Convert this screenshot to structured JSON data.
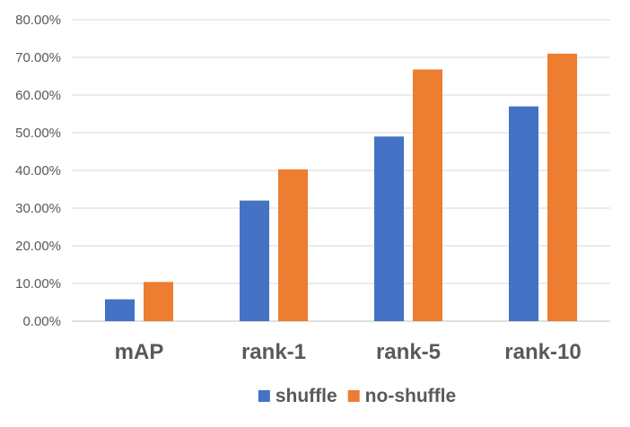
{
  "chart_data": {
    "type": "bar",
    "title": "",
    "xlabel": "",
    "ylabel": "",
    "categories": [
      "mAP",
      "rank-1",
      "rank-5",
      "rank-10"
    ],
    "series": [
      {
        "name": "shuffle",
        "color": "#4472C4",
        "values": [
          5.8,
          32.0,
          49.0,
          57.0
        ]
      },
      {
        "name": "no-shuffle",
        "color": "#ED7D31",
        "values": [
          10.4,
          40.3,
          66.8,
          71.0
        ]
      }
    ],
    "ylim": [
      0,
      80
    ],
    "yticks": [
      0,
      10,
      20,
      30,
      40,
      50,
      60,
      70,
      80
    ],
    "ytick_labels": [
      "0.00%",
      "10.00%",
      "20.00%",
      "30.00%",
      "40.00%",
      "50.00%",
      "60.00%",
      "70.00%",
      "80.00%"
    ],
    "grid": true,
    "legend_position": "bottom"
  }
}
